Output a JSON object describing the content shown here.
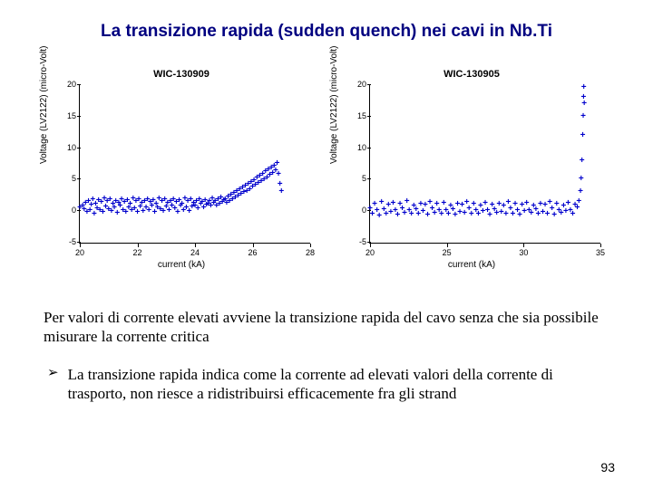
{
  "title": "La transizione rapida (sudden quench) nei cavi in Nb.Ti",
  "description": "Per valori di corrente elevati avviene la transizione rapida del cavo senza che sia possibile misurare la corrente critica",
  "bullet_text": "La transizione rapida indica come la corrente ad elevati valori della corrente di trasporto, non riesce a ridistribuirsi efficacemente fra gli strand",
  "bullet_marker": "➢",
  "page_number": "93",
  "chart1": {
    "type": "scatter",
    "title": "WIC-130909",
    "ylabel": "Voltage (LV2122) (micro-Volt)",
    "xlabel": "current (kA)",
    "xlim": [
      20,
      28
    ],
    "ylim": [
      -5,
      20
    ],
    "xticks": [
      20,
      22,
      24,
      26,
      28
    ],
    "yticks": [
      -5,
      0,
      5,
      10,
      15,
      20
    ],
    "marker": "+",
    "marker_color": "#0000cc",
    "marker_fontsize": 10,
    "background_color": "#ffffff",
    "points": [
      [
        20.0,
        0.5
      ],
      [
        20.1,
        0.8
      ],
      [
        20.15,
        0.2
      ],
      [
        20.2,
        1.2
      ],
      [
        20.25,
        -0.3
      ],
      [
        20.3,
        1.5
      ],
      [
        20.35,
        0.1
      ],
      [
        20.4,
        0.9
      ],
      [
        20.45,
        1.8
      ],
      [
        20.5,
        -0.5
      ],
      [
        20.55,
        1.1
      ],
      [
        20.6,
        0.3
      ],
      [
        20.65,
        1.6
      ],
      [
        20.7,
        0.0
      ],
      [
        20.75,
        1.3
      ],
      [
        20.8,
        -0.2
      ],
      [
        20.85,
        1.9
      ],
      [
        20.9,
        0.6
      ],
      [
        20.95,
        1.4
      ],
      [
        21.0,
        0.2
      ],
      [
        21.05,
        1.7
      ],
      [
        21.1,
        -0.1
      ],
      [
        21.15,
        1.0
      ],
      [
        21.2,
        0.4
      ],
      [
        21.25,
        1.5
      ],
      [
        21.3,
        -0.4
      ],
      [
        21.35,
        1.2
      ],
      [
        21.4,
        0.7
      ],
      [
        21.45,
        1.8
      ],
      [
        21.5,
        0.1
      ],
      [
        21.55,
        1.3
      ],
      [
        21.6,
        -0.2
      ],
      [
        21.65,
        1.6
      ],
      [
        21.7,
        0.5
      ],
      [
        21.75,
        1.1
      ],
      [
        21.8,
        0.0
      ],
      [
        21.85,
        1.9
      ],
      [
        21.9,
        0.3
      ],
      [
        21.95,
        1.4
      ],
      [
        22.0,
        -0.3
      ],
      [
        22.05,
        1.7
      ],
      [
        22.1,
        0.6
      ],
      [
        22.15,
        1.2
      ],
      [
        22.2,
        -0.1
      ],
      [
        22.25,
        1.5
      ],
      [
        22.3,
        0.4
      ],
      [
        22.35,
        1.8
      ],
      [
        22.4,
        0.0
      ],
      [
        22.45,
        1.3
      ],
      [
        22.5,
        0.8
      ],
      [
        22.55,
        1.6
      ],
      [
        22.6,
        -0.2
      ],
      [
        22.65,
        1.1
      ],
      [
        22.7,
        0.5
      ],
      [
        22.75,
        1.9
      ],
      [
        22.8,
        0.2
      ],
      [
        22.85,
        1.4
      ],
      [
        22.9,
        -0.1
      ],
      [
        22.95,
        1.7
      ],
      [
        23.0,
        0.6
      ],
      [
        23.05,
        1.2
      ],
      [
        23.1,
        0.0
      ],
      [
        23.15,
        1.5
      ],
      [
        23.2,
        0.8
      ],
      [
        23.25,
        1.8
      ],
      [
        23.3,
        0.3
      ],
      [
        23.35,
        1.3
      ],
      [
        23.4,
        -0.2
      ],
      [
        23.45,
        1.6
      ],
      [
        23.5,
        0.7
      ],
      [
        23.55,
        1.1
      ],
      [
        23.6,
        0.0
      ],
      [
        23.65,
        1.9
      ],
      [
        23.7,
        0.4
      ],
      [
        23.75,
        1.4
      ],
      [
        23.8,
        -0.1
      ],
      [
        23.85,
        1.7
      ],
      [
        23.9,
        0.6
      ],
      [
        23.95,
        1.2
      ],
      [
        24.0,
        0.8
      ],
      [
        24.05,
        1.5
      ],
      [
        24.1,
        0.3
      ],
      [
        24.15,
        1.8
      ],
      [
        24.2,
        1.0
      ],
      [
        24.25,
        1.3
      ],
      [
        24.3,
        0.5
      ],
      [
        24.35,
        1.6
      ],
      [
        24.4,
        0.9
      ],
      [
        24.45,
        1.1
      ],
      [
        24.5,
        1.4
      ],
      [
        24.55,
        0.7
      ],
      [
        24.6,
        1.9
      ],
      [
        24.65,
        1.2
      ],
      [
        24.7,
        1.5
      ],
      [
        24.75,
        0.8
      ],
      [
        24.8,
        1.7
      ],
      [
        24.85,
        1.0
      ],
      [
        24.9,
        2.0
      ],
      [
        24.95,
        1.3
      ],
      [
        25.0,
        1.6
      ],
      [
        25.05,
        1.8
      ],
      [
        25.1,
        1.2
      ],
      [
        25.15,
        2.2
      ],
      [
        25.2,
        1.5
      ],
      [
        25.25,
        2.5
      ],
      [
        25.3,
        1.8
      ],
      [
        25.35,
        2.8
      ],
      [
        25.4,
        2.0
      ],
      [
        25.45,
        3.0
      ],
      [
        25.5,
        2.3
      ],
      [
        25.55,
        3.3
      ],
      [
        25.6,
        2.6
      ],
      [
        25.65,
        3.6
      ],
      [
        25.7,
        2.9
      ],
      [
        25.75,
        3.9
      ],
      [
        25.8,
        3.1
      ],
      [
        25.85,
        4.2
      ],
      [
        25.9,
        3.4
      ],
      [
        25.95,
        4.5
      ],
      [
        26.0,
        3.7
      ],
      [
        26.05,
        4.8
      ],
      [
        26.1,
        4.0
      ],
      [
        26.15,
        5.2
      ],
      [
        26.2,
        4.3
      ],
      [
        26.25,
        5.5
      ],
      [
        26.3,
        4.6
      ],
      [
        26.35,
        5.8
      ],
      [
        26.4,
        4.9
      ],
      [
        26.45,
        6.2
      ],
      [
        26.5,
        5.2
      ],
      [
        26.55,
        6.5
      ],
      [
        26.6,
        5.6
      ],
      [
        26.65,
        6.8
      ],
      [
        26.7,
        5.9
      ],
      [
        26.75,
        7.0
      ],
      [
        26.8,
        6.3
      ],
      [
        26.85,
        7.5
      ],
      [
        26.9,
        5.8
      ],
      [
        26.95,
        4.2
      ],
      [
        27.0,
        3.0
      ]
    ]
  },
  "chart2": {
    "type": "scatter",
    "title": "WIC-130905",
    "ylabel": "Voltage (LV2122) (micro-Volt)",
    "xlabel": "current (kA)",
    "xlim": [
      20,
      35
    ],
    "ylim": [
      -5,
      20
    ],
    "xticks": [
      20,
      25,
      30,
      35
    ],
    "yticks": [
      -5,
      0,
      5,
      10,
      15,
      20
    ],
    "marker": "+",
    "marker_color": "#0000cc",
    "marker_fontsize": 10,
    "background_color": "#ffffff",
    "points": [
      [
        20.0,
        0.3
      ],
      [
        20.15,
        -0.5
      ],
      [
        20.3,
        1.1
      ],
      [
        20.45,
        0.0
      ],
      [
        20.6,
        -0.8
      ],
      [
        20.75,
        1.3
      ],
      [
        20.9,
        0.2
      ],
      [
        21.05,
        -0.6
      ],
      [
        21.2,
        0.9
      ],
      [
        21.35,
        -0.2
      ],
      [
        21.5,
        1.2
      ],
      [
        21.65,
        0.1
      ],
      [
        21.8,
        -0.7
      ],
      [
        21.95,
        1.0
      ],
      [
        22.1,
        0.3
      ],
      [
        22.25,
        -0.4
      ],
      [
        22.4,
        1.4
      ],
      [
        22.55,
        0.0
      ],
      [
        22.7,
        -0.6
      ],
      [
        22.85,
        0.8
      ],
      [
        23.0,
        0.2
      ],
      [
        23.15,
        -0.5
      ],
      [
        23.3,
        1.1
      ],
      [
        23.45,
        -0.1
      ],
      [
        23.6,
        0.9
      ],
      [
        23.75,
        -0.7
      ],
      [
        23.9,
        1.3
      ],
      [
        24.05,
        0.3
      ],
      [
        24.2,
        -0.4
      ],
      [
        24.35,
        1.0
      ],
      [
        24.5,
        0.1
      ],
      [
        24.65,
        -0.6
      ],
      [
        24.8,
        1.2
      ],
      [
        24.95,
        0.0
      ],
      [
        25.1,
        -0.5
      ],
      [
        25.25,
        0.8
      ],
      [
        25.4,
        0.2
      ],
      [
        25.55,
        -0.7
      ],
      [
        25.7,
        1.1
      ],
      [
        25.85,
        -0.2
      ],
      [
        26.0,
        0.9
      ],
      [
        26.15,
        -0.4
      ],
      [
        26.3,
        1.3
      ],
      [
        26.45,
        0.3
      ],
      [
        26.6,
        -0.6
      ],
      [
        26.75,
        1.0
      ],
      [
        26.9,
        0.1
      ],
      [
        27.05,
        -0.5
      ],
      [
        27.2,
        0.8
      ],
      [
        27.35,
        -0.1
      ],
      [
        27.5,
        1.2
      ],
      [
        27.65,
        0.0
      ],
      [
        27.8,
        -0.7
      ],
      [
        27.95,
        0.9
      ],
      [
        28.1,
        0.2
      ],
      [
        28.25,
        -0.4
      ],
      [
        28.4,
        1.1
      ],
      [
        28.55,
        -0.2
      ],
      [
        28.7,
        0.8
      ],
      [
        28.85,
        -0.6
      ],
      [
        29.0,
        1.3
      ],
      [
        29.15,
        0.3
      ],
      [
        29.3,
        -0.5
      ],
      [
        29.45,
        1.0
      ],
      [
        29.6,
        0.1
      ],
      [
        29.75,
        -0.7
      ],
      [
        29.9,
        0.9
      ],
      [
        30.05,
        -0.1
      ],
      [
        30.2,
        1.2
      ],
      [
        30.35,
        0.0
      ],
      [
        30.5,
        -0.4
      ],
      [
        30.65,
        0.8
      ],
      [
        30.8,
        0.2
      ],
      [
        30.95,
        -0.6
      ],
      [
        31.1,
        1.1
      ],
      [
        31.25,
        -0.2
      ],
      [
        31.4,
        0.9
      ],
      [
        31.55,
        -0.5
      ],
      [
        31.7,
        1.3
      ],
      [
        31.85,
        0.3
      ],
      [
        32.0,
        -0.7
      ],
      [
        32.15,
        1.0
      ],
      [
        32.3,
        0.1
      ],
      [
        32.45,
        -0.4
      ],
      [
        32.6,
        0.8
      ],
      [
        32.75,
        -0.1
      ],
      [
        32.9,
        1.2
      ],
      [
        33.05,
        0.0
      ],
      [
        33.2,
        -0.6
      ],
      [
        33.35,
        0.9
      ],
      [
        33.5,
        0.5
      ],
      [
        33.6,
        1.5
      ],
      [
        33.7,
        3.0
      ],
      [
        33.75,
        5.0
      ],
      [
        33.8,
        8.0
      ],
      [
        33.85,
        12.0
      ],
      [
        33.88,
        15.0
      ],
      [
        33.9,
        18.0
      ],
      [
        33.92,
        19.5
      ],
      [
        33.95,
        17.0
      ]
    ]
  }
}
